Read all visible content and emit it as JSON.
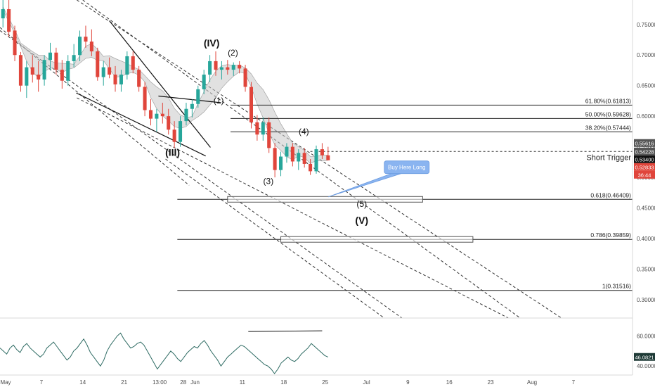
{
  "chart_data": {
    "type": "candlestick",
    "price_axis": {
      "ylim": [
        0.27,
        0.79
      ],
      "ticks": [
        "0.75000",
        "0.70000",
        "0.65000",
        "0.60000",
        "0.55000",
        "0.50000",
        "0.45000",
        "0.40000",
        "0.35000",
        "0.30000"
      ],
      "tick_values": [
        0.75,
        0.7,
        0.65,
        0.6,
        0.55,
        0.5,
        0.45,
        0.4,
        0.35,
        0.3
      ]
    },
    "time_axis": {
      "labels": [
        "May",
        "7",
        "14",
        "21",
        "13:00",
        "28",
        "Jun",
        "11",
        "18",
        "25",
        "Jul",
        "9",
        "16",
        "23",
        "Aug",
        "7"
      ],
      "indices": [
        0,
        7,
        14,
        21,
        27,
        31,
        33,
        41,
        48,
        55,
        62,
        69,
        76,
        83,
        90,
        97
      ],
      "range": [
        0,
        107
      ]
    },
    "price_tags": [
      {
        "value": 0.55616,
        "label": "0.55616",
        "color": "#555555"
      },
      {
        "value": 0.54228,
        "label": "0.54228",
        "color": "#555555"
      },
      {
        "value": 0.534,
        "label": "0.53400",
        "color": "#111111"
      },
      {
        "value": 0.52833,
        "label": "0.52833",
        "color": "#e0453b"
      },
      {
        "value": 0.5165,
        "label": "36:44",
        "color": "#e0453b"
      }
    ],
    "fib_levels": [
      {
        "label": "61.80%(0.61813)",
        "value": 0.61813,
        "start": 39
      },
      {
        "label": "50.00%(0.59628)",
        "value": 0.59628,
        "start": 39
      },
      {
        "label": "38.20%(0.57444)",
        "value": 0.57444,
        "start": 39
      },
      {
        "label": "0.618(0.46409)",
        "value": 0.46409,
        "start": 30
      },
      {
        "label": "0.786(0.39859)",
        "value": 0.39859,
        "start": 30
      },
      {
        "label": "1(0.31516)",
        "value": 0.31516,
        "start": 30
      }
    ],
    "short_trigger": {
      "label": "Short Trigger",
      "value": 0.5423
    },
    "wave_labels": [
      {
        "text": "(III)",
        "x": 29.2,
        "y": 0.535,
        "big": true
      },
      {
        "text": "(IV)",
        "x": 35.8,
        "y": 0.714,
        "big": true
      },
      {
        "text": "(1)",
        "x": 37.0,
        "y": 0.621,
        "big": false
      },
      {
        "text": "(2)",
        "x": 39.4,
        "y": 0.699,
        "big": false
      },
      {
        "text": "(3)",
        "x": 45.4,
        "y": 0.489,
        "big": false
      },
      {
        "text": "(4)",
        "x": 51.4,
        "y": 0.57,
        "big": false
      },
      {
        "text": "(5)",
        "x": 61.2,
        "y": 0.452,
        "big": false
      },
      {
        "text": "(V)",
        "x": 61.2,
        "y": 0.424,
        "big": true
      }
    ],
    "callout": {
      "text": "Buy Here Long"
    },
    "candles": [
      [
        0,
        0.76,
        0.79,
        0.745,
        0.775
      ],
      [
        1,
        0.775,
        0.79,
        0.73,
        0.738
      ],
      [
        2,
        0.74,
        0.748,
        0.69,
        0.7
      ],
      [
        3,
        0.7,
        0.705,
        0.64,
        0.65
      ],
      [
        4,
        0.65,
        0.69,
        0.63,
        0.68
      ],
      [
        5,
        0.68,
        0.7,
        0.655,
        0.668
      ],
      [
        6,
        0.668,
        0.69,
        0.64,
        0.66
      ],
      [
        7,
        0.66,
        0.7,
        0.65,
        0.692
      ],
      [
        8,
        0.692,
        0.72,
        0.675,
        0.704
      ],
      [
        9,
        0.704,
        0.712,
        0.668,
        0.676
      ],
      [
        10,
        0.676,
        0.692,
        0.645,
        0.658
      ],
      [
        11,
        0.658,
        0.7,
        0.65,
        0.69
      ],
      [
        12,
        0.69,
        0.718,
        0.68,
        0.7
      ],
      [
        13,
        0.7,
        0.74,
        0.69,
        0.73
      ],
      [
        14,
        0.73,
        0.748,
        0.712,
        0.722
      ],
      [
        15,
        0.722,
        0.742,
        0.698,
        0.706
      ],
      [
        16,
        0.706,
        0.712,
        0.658,
        0.664
      ],
      [
        17,
        0.664,
        0.69,
        0.65,
        0.68
      ],
      [
        18,
        0.68,
        0.696,
        0.662,
        0.668
      ],
      [
        19,
        0.668,
        0.682,
        0.64,
        0.652
      ],
      [
        20,
        0.652,
        0.676,
        0.64,
        0.668
      ],
      [
        21,
        0.668,
        0.706,
        0.66,
        0.698
      ],
      [
        22,
        0.698,
        0.706,
        0.67,
        0.676
      ],
      [
        23,
        0.676,
        0.682,
        0.64,
        0.648
      ],
      [
        24,
        0.648,
        0.656,
        0.6,
        0.61
      ],
      [
        25,
        0.61,
        0.628,
        0.585,
        0.596
      ],
      [
        26,
        0.596,
        0.612,
        0.575,
        0.604
      ],
      [
        27,
        0.604,
        0.622,
        0.588,
        0.6
      ],
      [
        28,
        0.6,
        0.612,
        0.57,
        0.578
      ],
      [
        29,
        0.578,
        0.592,
        0.548,
        0.558
      ],
      [
        30,
        0.558,
        0.6,
        0.55,
        0.592
      ],
      [
        31,
        0.592,
        0.622,
        0.585,
        0.612
      ],
      [
        32,
        0.612,
        0.628,
        0.598,
        0.62
      ],
      [
        33,
        0.62,
        0.65,
        0.614,
        0.644
      ],
      [
        34,
        0.644,
        0.676,
        0.636,
        0.668
      ],
      [
        35,
        0.668,
        0.7,
        0.656,
        0.69
      ],
      [
        36,
        0.69,
        0.706,
        0.666,
        0.676
      ],
      [
        37,
        0.676,
        0.69,
        0.66,
        0.68
      ],
      [
        38,
        0.68,
        0.692,
        0.668,
        0.676
      ],
      [
        39,
        0.676,
        0.688,
        0.666,
        0.684
      ],
      [
        40,
        0.684,
        0.69,
        0.67,
        0.678
      ],
      [
        41,
        0.678,
        0.684,
        0.64,
        0.648
      ],
      [
        42,
        0.648,
        0.656,
        0.58,
        0.59
      ],
      [
        43,
        0.59,
        0.602,
        0.56,
        0.57
      ],
      [
        44,
        0.57,
        0.598,
        0.56,
        0.59
      ],
      [
        45,
        0.59,
        0.598,
        0.54,
        0.548
      ],
      [
        46,
        0.548,
        0.556,
        0.5,
        0.512
      ],
      [
        47,
        0.512,
        0.542,
        0.502,
        0.534
      ],
      [
        48,
        0.534,
        0.556,
        0.524,
        0.55
      ],
      [
        49,
        0.55,
        0.556,
        0.518,
        0.526
      ],
      [
        50,
        0.526,
        0.546,
        0.512,
        0.54
      ],
      [
        51,
        0.54,
        0.548,
        0.516,
        0.522
      ],
      [
        52,
        0.522,
        0.53,
        0.504,
        0.51
      ],
      [
        53,
        0.51,
        0.552,
        0.506,
        0.546
      ],
      [
        54,
        0.546,
        0.556,
        0.53,
        0.536
      ],
      [
        55,
        0.536,
        0.55,
        0.528,
        0.528
      ]
    ],
    "channels": [
      {
        "p1": [
          0,
          0.745
        ],
        "p2": [
          32,
          0.487
        ]
      },
      {
        "p1": [
          13,
          0.79
        ],
        "p2": [
          95,
          0.27
        ]
      },
      {
        "p1": [
          14,
          0.79
        ],
        "p2": [
          88,
          0.27
        ]
      },
      {
        "p1": [
          13,
          0.63
        ],
        "p2": [
          86,
          0.27
        ]
      },
      {
        "p1": [
          0,
          0.74
        ],
        "p2": [
          68,
          0.27
        ]
      },
      {
        "p1": [
          28,
          0.53
        ],
        "p2": [
          65,
          0.27
        ]
      }
    ],
    "trendlines": [
      {
        "p1": [
          12.9,
          0.638
        ],
        "p2": [
          34.8,
          0.535
        ]
      },
      {
        "p1": [
          18.5,
          0.756
        ],
        "p2": [
          35.6,
          0.549
        ]
      },
      {
        "p1": [
          26.8,
          0.633
        ],
        "p2": [
          37.4,
          0.622
        ]
      }
    ],
    "rsi": {
      "ticks": [
        "60.0000",
        "40.0000"
      ],
      "tick_values": [
        60,
        40
      ],
      "ylim": [
        34,
        72
      ],
      "current": "46.0821",
      "values": [
        52,
        50,
        48,
        52,
        54,
        51,
        49,
        53,
        55,
        52,
        50,
        48,
        46,
        48,
        52,
        54,
        56,
        53,
        50,
        47,
        44,
        46,
        50,
        52,
        55,
        58,
        54,
        49,
        46,
        43,
        40,
        44,
        50,
        54,
        57,
        60,
        62,
        58,
        55,
        52,
        53,
        55,
        56,
        54,
        50,
        46,
        42,
        38,
        41,
        44,
        47,
        50,
        48,
        45,
        43,
        46,
        49,
        51,
        53,
        52,
        55,
        57,
        54,
        50,
        47,
        44,
        40,
        43,
        46,
        48,
        50,
        52,
        54,
        53,
        51,
        49,
        47,
        45,
        43,
        41,
        40,
        38,
        35,
        38,
        42,
        44,
        46,
        44,
        43,
        45,
        48,
        50,
        52,
        55,
        53,
        51,
        49,
        47,
        46
      ]
    }
  }
}
